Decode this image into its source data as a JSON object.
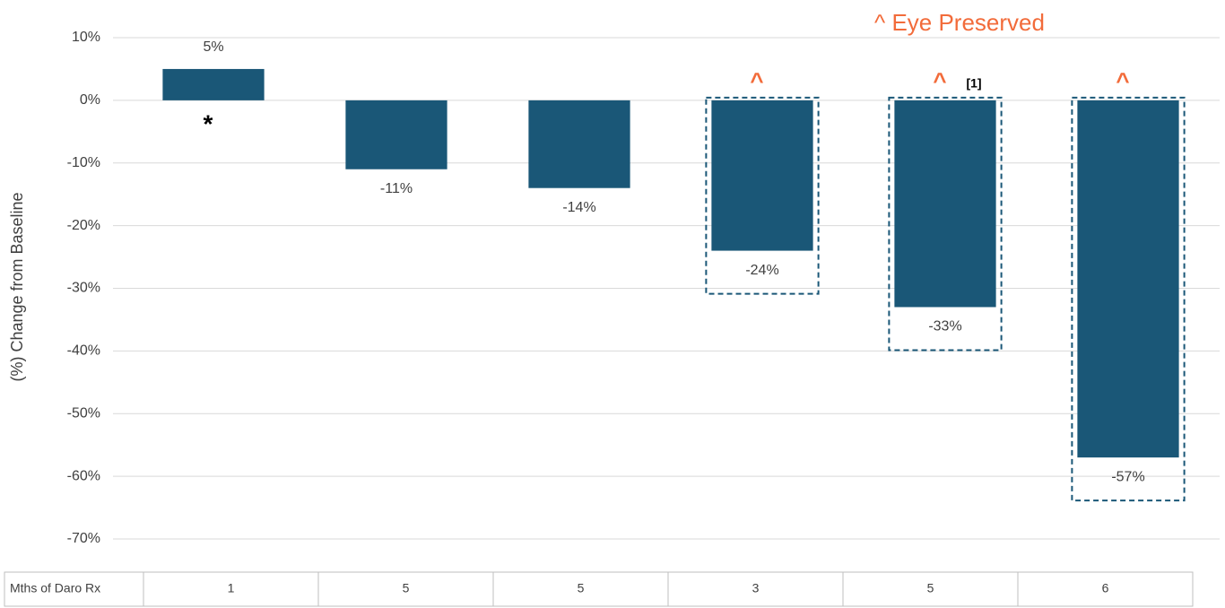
{
  "chart_data": {
    "type": "bar",
    "y_label": "(%) Change from Baseline",
    "legend_note": "^ Eye Preserved",
    "table_header": "Mths of Daro Rx",
    "categories": [
      "1",
      "5",
      "5",
      "3",
      "5",
      "6"
    ],
    "values": [
      5,
      -11,
      -14,
      -24,
      -33,
      -57
    ],
    "value_labels": [
      "5%",
      "-11%",
      "-14%",
      "-24%",
      "-33%",
      "-57%"
    ],
    "marks_above": [
      null,
      null,
      null,
      "^",
      "^",
      "^"
    ],
    "notes": [
      null,
      null,
      null,
      null,
      "[1]",
      null
    ],
    "marks_below": [
      "*",
      null,
      null,
      null,
      null,
      null
    ],
    "boxed": [
      false,
      false,
      false,
      true,
      true,
      true
    ],
    "color": "#1a5777",
    "accent_color": "#f26b3a",
    "ylim": [
      -70,
      10
    ],
    "yticks": [
      {
        "value": 10,
        "label": "10%"
      },
      {
        "value": 0,
        "label": "0%"
      },
      {
        "value": -10,
        "label": "-10%"
      },
      {
        "value": -20,
        "label": "-20%"
      },
      {
        "value": -30,
        "label": "-30%"
      },
      {
        "value": -40,
        "label": "-40%"
      },
      {
        "value": -50,
        "label": "-50%"
      },
      {
        "value": -60,
        "label": "-60%"
      },
      {
        "value": -70,
        "label": "-70%"
      }
    ],
    "grid": true
  }
}
